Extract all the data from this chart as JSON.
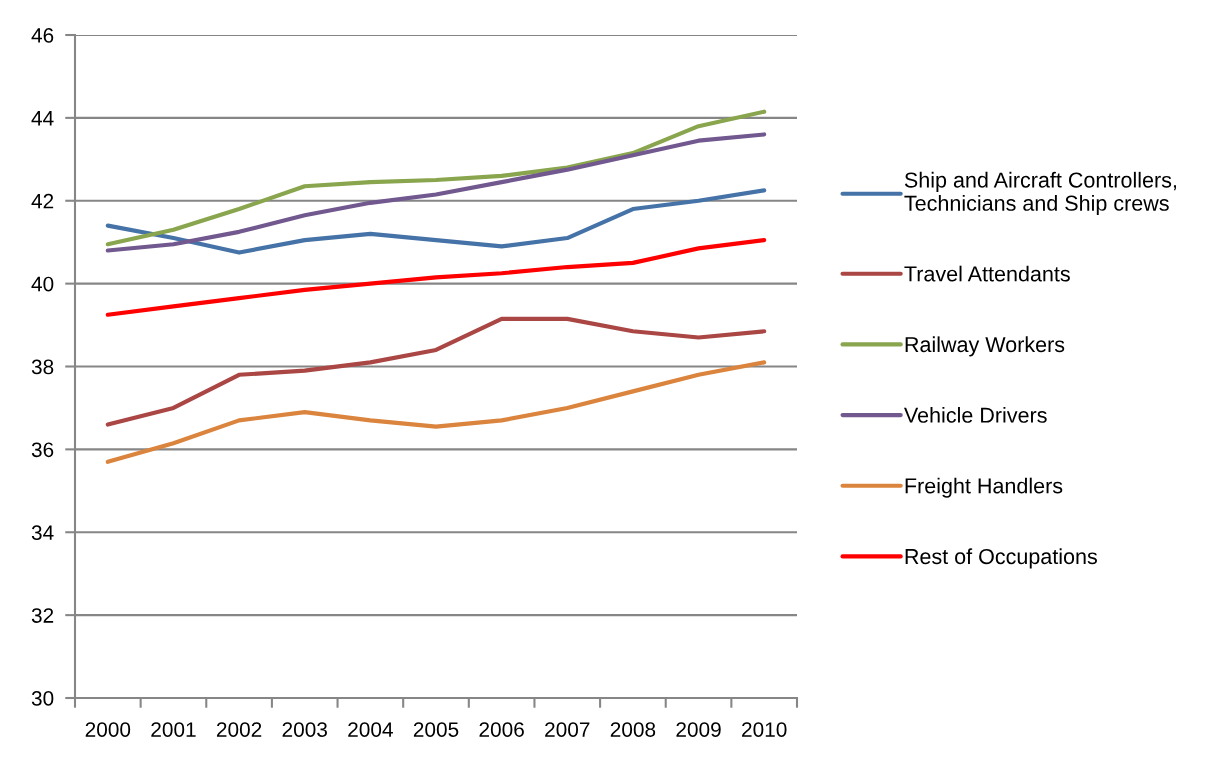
{
  "chart_data": {
    "type": "line",
    "categories": [
      "2000",
      "2001",
      "2002",
      "2003",
      "2004",
      "2005",
      "2006",
      "2007",
      "2008",
      "2009",
      "2010"
    ],
    "ylim": [
      30,
      46
    ],
    "yticks": [
      30,
      32,
      34,
      36,
      38,
      40,
      42,
      44,
      46
    ],
    "grid": "y",
    "legend": "right",
    "marker": "none",
    "line_style": "solid",
    "series": [
      {
        "name": "Ship and Aircraft Controllers,\nTechnicians and Ship crews",
        "color": "#4572a7",
        "values": [
          41.4,
          41.1,
          40.75,
          41.05,
          41.2,
          41.05,
          40.9,
          41.1,
          41.8,
          42.0,
          42.25
        ]
      },
      {
        "name": "Travel Attendants",
        "color": "#aa4643",
        "values": [
          36.6,
          37.0,
          37.8,
          37.9,
          38.1,
          38.4,
          39.15,
          39.15,
          38.85,
          38.7,
          38.85
        ]
      },
      {
        "name": "Railway Workers",
        "color": "#89a54e",
        "values": [
          40.95,
          41.3,
          41.8,
          42.35,
          42.45,
          42.5,
          42.6,
          42.8,
          43.15,
          43.8,
          44.15
        ]
      },
      {
        "name": "Vehicle Drivers",
        "color": "#71588f",
        "values": [
          40.8,
          40.95,
          41.25,
          41.65,
          41.95,
          42.15,
          42.45,
          42.75,
          43.1,
          43.45,
          43.6
        ]
      },
      {
        "name": "Freight Handlers",
        "color": "#db843d",
        "values": [
          35.7,
          36.15,
          36.7,
          36.9,
          36.7,
          36.55,
          36.7,
          37.0,
          37.4,
          37.8,
          38.1
        ]
      },
      {
        "name": "Rest of Occupations",
        "color": "#ff0000",
        "values": [
          39.25,
          39.45,
          39.65,
          39.85,
          40.0,
          40.15,
          40.25,
          40.4,
          40.5,
          40.85,
          41.05
        ]
      }
    ]
  }
}
